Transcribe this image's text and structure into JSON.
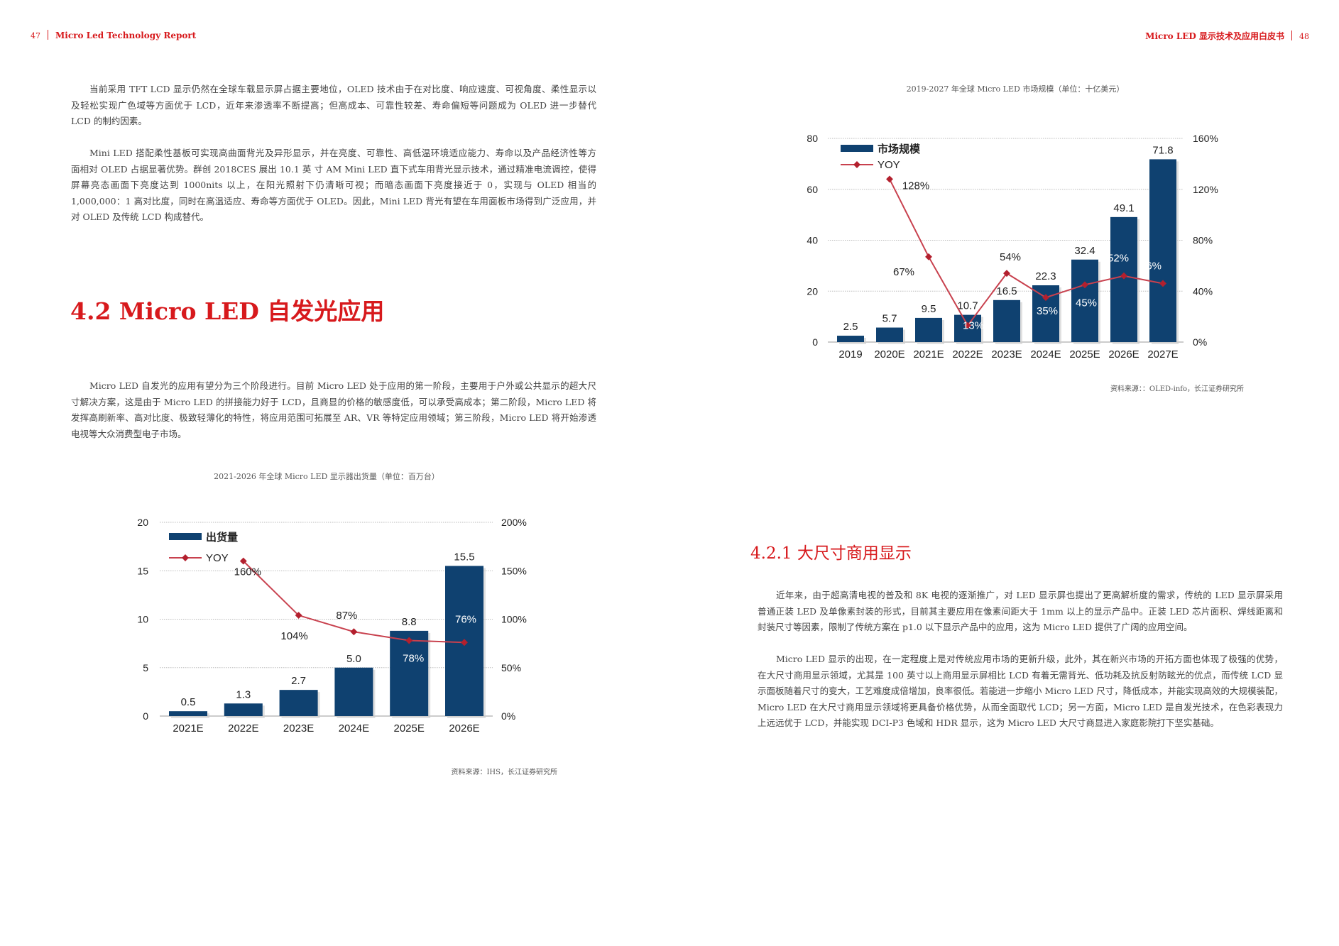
{
  "header_left": {
    "page": "47",
    "title": "Micro Led Technology Report"
  },
  "header_right": {
    "title": "Micro LED 显示技术及应用白皮书",
    "page": "48"
  },
  "left": {
    "para1": [
      "当前采用 TFT LCD 显示仍然在全球车载显示屏占据主要地位，OLED 技术由于在对比度、响应速度、可视角度、柔性显示以",
      "及轻松实现广色域等方面优于 LCD，近年来渗透率不断提高；但高成本、可靠性较差、寿命偏短等问题成为 OLED 进一步替代",
      "LCD 的制约因素。"
    ],
    "para2": [
      "Mini LED 搭配柔性基板可实现高曲面背光及异形显示，并在亮度、可靠性、高低温环境适应能力、寿命以及产品经济性等方",
      "面相对 OLED 占据显著优势。群创 2018CES 展出 10.1 英 寸 AM Mini LED 直下式车用背光显示技术，通过精准电流调控，使得",
      "屏幕亮态画面下亮度达到 1000nits 以上，在阳光照射下仍清晰可视；而暗态画面下亮度接近于 0，实现与 OLED 相当的",
      "1,000,000：1 高对比度，同时在高温适应、寿命等方面优于 OLED。因此，Mini LED 背光有望在车用面板市场得到广泛应用，并",
      "对 OLED 及传统 LCD 构成替代。"
    ],
    "heading": "4.2  Micro LED 自发光应用",
    "para3": [
      "Micro LED 自发光的应用有望分为三个阶段进行。目前 Micro LED 处于应用的第一阶段，主要用于户外或公共显示的超大尺",
      "寸解决方案，这是由于 Micro LED 的拼接能力好于 LCD，且商显的价格的敏感度低，可以承受高成本；第二阶段，Micro LED 将",
      "发挥高刷新率、高对比度、极致轻薄化的特性，将应用范围可拓展至 AR、VR 等特定应用领域；第三阶段，Micro LED 将开始渗透",
      "电视等大众消费型电子市场。"
    ]
  },
  "right": {
    "heading": "4.2.1 大尺寸商用显示",
    "para1": [
      "近年来，由于超高清电视的普及和 8K 电视的逐渐推广，对 LED 显示屏也提出了更高解析度的需求，传统的 LED 显示屏采用",
      "普通正装 LED 及单像素封装的形式，目前其主要应用在像素间距大于 1mm 以上的显示产品中。正装 LED 芯片面积、焊线距离和",
      "封装尺寸等因素，限制了传统方案在 p1.0 以下显示产品中的应用，这为 Micro LED 提供了广阔的应用空间。"
    ],
    "para2": [
      "Micro LED 显示的出现，在一定程度上是对传统应用市场的更新升级，此外，其在新兴市场的开拓方面也体现了极强的优势，",
      "在大尺寸商用显示领域，尤其是 100 英寸以上商用显示屏相比 LCD 有着无需背光、低功耗及抗反射防眩光的优点，而传统 LCD 显",
      "示面板随着尺寸的变大，工艺难度成倍增加，良率很低。若能进一步缩小 Micro LED 尺寸，降低成本，并能实现高效的大规模装配，",
      "Micro LED 在大尺寸商用显示领域将更具备价格优势，从而全面取代 LCD；另一方面，Micro LED 是自发光技术，在色彩表现力",
      "上远远优于 LCD，并能实现 DCI-P3 色域和 HDR 显示，这为 Micro LED 大尺寸商显进入家庭影院打下坚实基础。"
    ]
  },
  "colors": {
    "accent": "#d7191c",
    "bar": "#0f4170",
    "line": "#c8414e"
  },
  "chart_data": [
    {
      "type": "bar",
      "title": "2019-2027 年全球 Micro LED 市场规模（单位：十亿美元）",
      "source": "资料来源：：OLED-info，长江证券研究所",
      "categories": [
        "2019",
        "2020E",
        "2021E",
        "2022E",
        "2023E",
        "2024E",
        "2025E",
        "2026E",
        "2027E"
      ],
      "series": [
        {
          "name": "市场规模",
          "type": "bar",
          "axis": "left",
          "values": [
            2.5,
            5.7,
            9.5,
            10.7,
            16.5,
            22.3,
            32.4,
            49.1,
            71.8
          ],
          "labels": [
            "2.5",
            "5.7",
            "9.5",
            "10.7",
            "16.5",
            "22.3",
            "32.4",
            "49.1",
            "71.8"
          ]
        },
        {
          "name": "YOY",
          "type": "line",
          "axis": "right",
          "values": [
            null,
            128,
            67,
            13,
            54,
            35,
            45,
            52,
            46
          ],
          "labels": [
            "",
            "128%",
            "67%",
            "13%",
            "54%",
            "35%",
            "45%",
            "52%",
            "46%"
          ]
        }
      ],
      "ylim": [
        0,
        80
      ],
      "yticks": [
        "0",
        "20",
        "40",
        "60",
        "80"
      ],
      "y2lim": [
        0,
        160
      ],
      "y2ticks": [
        "0%",
        "40%",
        "80%",
        "120%",
        "160%"
      ],
      "grid": true,
      "legend": "top-left"
    },
    {
      "type": "bar",
      "title": "2021-2026 年全球 Micro LED 显示器出货量（单位：百万台）",
      "source": "资料来源：IHS，长江证券研究所",
      "categories": [
        "2021E",
        "2022E",
        "2023E",
        "2024E",
        "2025E",
        "2026E"
      ],
      "series": [
        {
          "name": "出货量",
          "type": "bar",
          "axis": "left",
          "values": [
            0.5,
            1.3,
            2.7,
            5.0,
            8.8,
            15.5
          ],
          "labels": [
            "0.5",
            "1.3",
            "2.7",
            "5.0",
            "8.8",
            "15.5"
          ]
        },
        {
          "name": "YOY",
          "type": "line",
          "axis": "right",
          "values": [
            null,
            160,
            104,
            87,
            78,
            76
          ],
          "labels": [
            "",
            "160%",
            "104%",
            "87%",
            "78%",
            "76%"
          ]
        }
      ],
      "ylim": [
        0,
        20
      ],
      "yticks": [
        "0",
        "5",
        "10",
        "15",
        "20"
      ],
      "y2lim": [
        0,
        200
      ],
      "y2ticks": [
        "0%",
        "50%",
        "100%",
        "150%",
        "200%"
      ],
      "grid": true,
      "legend": "top-left"
    }
  ]
}
